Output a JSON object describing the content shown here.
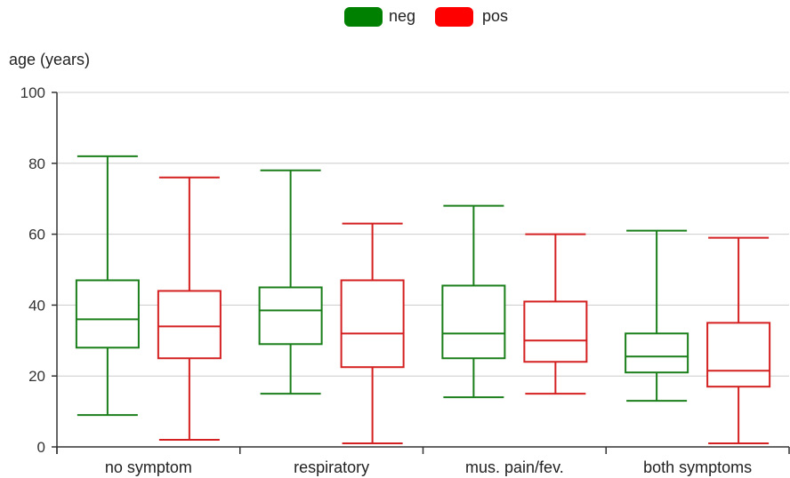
{
  "chart_data": {
    "type": "boxplot",
    "ylabel": "age (years)",
    "ylim": [
      0,
      100
    ],
    "yticks": [
      0,
      20,
      40,
      60,
      80,
      100
    ],
    "grid": true,
    "legend_position": "top-center",
    "categories": [
      "no symptom",
      "respiratory",
      "mus. pain/fev.",
      "both symptoms"
    ],
    "series": [
      {
        "name": "neg",
        "color": "#1a7f1a",
        "boxes": [
          {
            "min": 9,
            "q1": 28,
            "median": 36,
            "q3": 47,
            "max": 82
          },
          {
            "min": 15,
            "q1": 29,
            "median": 38.5,
            "q3": 45,
            "max": 78
          },
          {
            "min": 14,
            "q1": 25,
            "median": 32,
            "q3": 45.5,
            "max": 68
          },
          {
            "min": 13,
            "q1": 21,
            "median": 25.5,
            "q3": 32,
            "max": 61
          }
        ]
      },
      {
        "name": "pos",
        "color": "#d42020",
        "boxes": [
          {
            "min": 2,
            "q1": 25,
            "median": 34,
            "q3": 44,
            "max": 76
          },
          {
            "min": 1,
            "q1": 22.5,
            "median": 32,
            "q3": 47,
            "max": 63
          },
          {
            "min": 15,
            "q1": 24,
            "median": 30,
            "q3": 41,
            "max": 60
          },
          {
            "min": 1,
            "q1": 17,
            "median": 21.5,
            "q3": 35,
            "max": 59
          }
        ]
      }
    ],
    "legend_swatch_colors": {
      "neg": "#008000",
      "pos": "#ff0000"
    }
  }
}
